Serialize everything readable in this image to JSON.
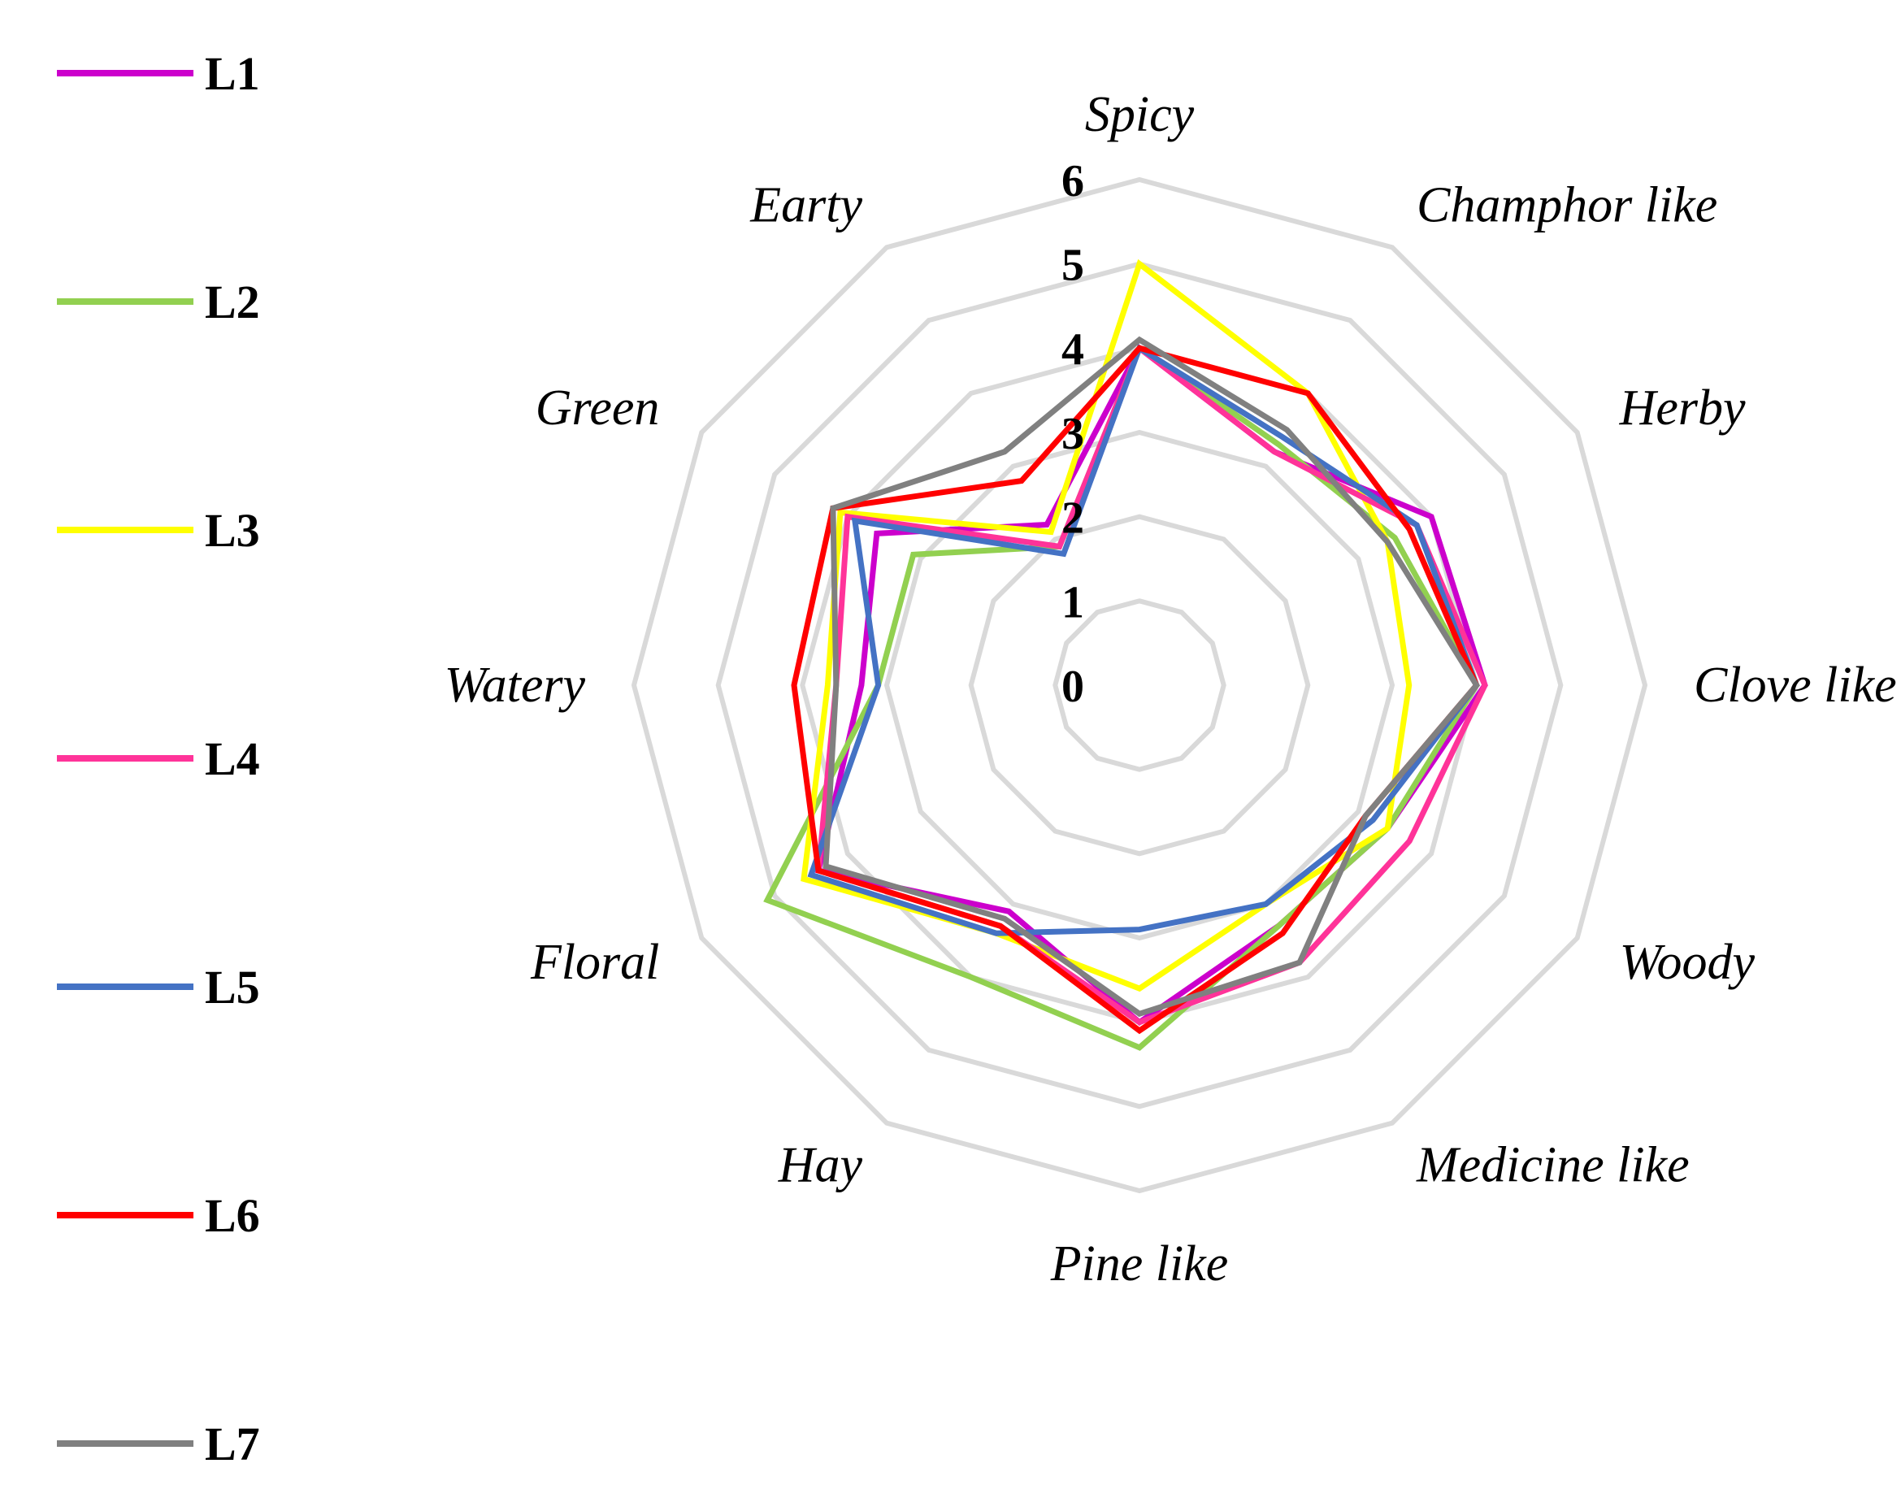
{
  "chart_data": {
    "type": "radar",
    "axes": [
      "Spicy",
      "Champhor like",
      "Herby",
      "Clove like",
      "Woody",
      "Medicine like",
      "Pine like",
      "Hay",
      "Floral",
      "Watery",
      "Green",
      "Earty"
    ],
    "rlim": [
      0,
      6
    ],
    "ticks": [
      "0",
      "1",
      "2",
      "3",
      "4",
      "5",
      "6"
    ],
    "grid": true,
    "legend_position": "left",
    "series": [
      {
        "name": "L1",
        "color": "#cc00cc",
        "values": [
          4.0,
          3.2,
          4.0,
          4.1,
          3.4,
          3.3,
          4.0,
          3.1,
          4.4,
          3.3,
          3.6,
          2.2
        ]
      },
      {
        "name": "L2",
        "color": "#92d050",
        "values": [
          4.0,
          3.3,
          3.5,
          4.0,
          3.4,
          3.3,
          4.3,
          4.0,
          5.1,
          3.1,
          3.1,
          1.9
        ]
      },
      {
        "name": "L3",
        "color": "#ffff00",
        "values": [
          5.0,
          4.0,
          3.4,
          3.2,
          3.4,
          3.0,
          3.6,
          3.4,
          4.6,
          3.7,
          4.1,
          2.1
        ]
      },
      {
        "name": "L4",
        "color": "#ff3399",
        "values": [
          4.0,
          3.2,
          3.8,
          4.1,
          3.7,
          3.8,
          4.0,
          3.3,
          4.4,
          3.6,
          4.0,
          1.9
        ]
      },
      {
        "name": "L5",
        "color": "#4472c4",
        "values": [
          4.0,
          3.4,
          3.8,
          4.0,
          3.2,
          3.0,
          2.9,
          3.4,
          4.5,
          3.1,
          3.9,
          1.8
        ]
      },
      {
        "name": "L6",
        "color": "#ff0000",
        "values": [
          4.0,
          4.0,
          3.7,
          4.0,
          3.1,
          3.4,
          4.1,
          3.3,
          4.4,
          4.1,
          4.2,
          2.8
        ]
      },
      {
        "name": "L7",
        "color": "#808080",
        "values": [
          4.1,
          3.5,
          3.4,
          4.0,
          3.1,
          3.8,
          3.9,
          3.2,
          4.3,
          3.6,
          4.2,
          3.2
        ]
      }
    ]
  }
}
